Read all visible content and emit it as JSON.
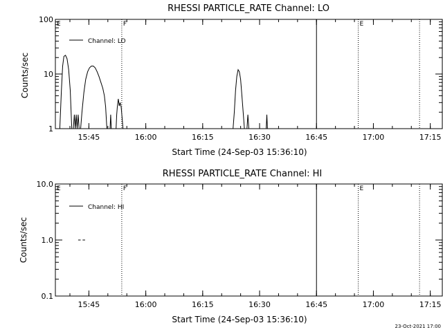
{
  "footer_date": "23-Oct-2021 17:00",
  "colors": {
    "background": "#ffffff",
    "foreground": "#000000"
  },
  "chart_data": [
    {
      "type": "line",
      "title": "RHESSI PARTICLE_RATE Channel: LO",
      "xlabel": "Start Time (24-Sep-03 15:36:10)",
      "ylabel": "Counts/sec",
      "yscale": "log",
      "xlim": [
        "15:36:10",
        "17:18:10"
      ],
      "ylim": [
        1,
        100
      ],
      "xticks": [
        "15:45",
        "16:00",
        "16:15",
        "16:30",
        "16:45",
        "17:00",
        "17:15"
      ],
      "yticks": [
        "1",
        "10",
        "100"
      ],
      "legend": {
        "position": "top-left",
        "entries": [
          "Channel: LO"
        ]
      },
      "series": [
        {
          "name": "Channel: LO",
          "segments": [
            [
              [
                "15:37:20",
                1
              ],
              [
                "15:37:45",
                5
              ],
              [
                "15:38:05",
                14
              ],
              [
                "15:38:25",
                21
              ],
              [
                "15:38:50",
                22
              ],
              [
                "15:39:15",
                19
              ],
              [
                "15:39:40",
                12
              ],
              [
                "15:40:05",
                5
              ],
              [
                "15:40:30",
                1
              ]
            ],
            [
              [
                "15:40:55",
                1
              ],
              [
                "15:41:10",
                1.8
              ],
              [
                "15:41:25",
                1
              ],
              [
                "15:41:40",
                1.8
              ],
              [
                "15:41:55",
                1
              ],
              [
                "15:42:10",
                1.8
              ],
              [
                "15:42:25",
                1
              ]
            ],
            [
              [
                "15:42:50",
                1
              ],
              [
                "15:43:10",
                2
              ],
              [
                "15:43:40",
                4.5
              ],
              [
                "15:44:10",
                8
              ],
              [
                "15:44:40",
                11
              ],
              [
                "15:45:10",
                13
              ],
              [
                "15:45:40",
                14
              ],
              [
                "15:46:10",
                14
              ],
              [
                "15:46:40",
                13
              ],
              [
                "15:47:10",
                11
              ],
              [
                "15:47:40",
                9
              ],
              [
                "15:48:10",
                7
              ],
              [
                "15:48:40",
                5.5
              ],
              [
                "15:49:05",
                4
              ],
              [
                "15:49:25",
                2.5
              ],
              [
                "15:49:45",
                1
              ]
            ],
            [
              [
                "15:50:35",
                1
              ],
              [
                "15:50:45",
                1.8
              ],
              [
                "15:50:55",
                1
              ]
            ],
            [
              [
                "15:52:10",
                1
              ],
              [
                "15:52:20",
                1.8
              ],
              [
                "15:52:30",
                2.5
              ],
              [
                "15:52:45",
                3.5
              ],
              [
                "15:53:00",
                2.6
              ],
              [
                "15:53:15",
                3
              ],
              [
                "15:53:30",
                2.5
              ],
              [
                "15:53:45",
                1.6
              ],
              [
                "15:54:00",
                1
              ]
            ],
            [
              [
                "16:23:00",
                1
              ],
              [
                "16:23:20",
                2
              ],
              [
                "16:23:40",
                5
              ],
              [
                "16:24:00",
                9
              ],
              [
                "16:24:20",
                12
              ],
              [
                "16:24:40",
                11
              ],
              [
                "16:25:00",
                8
              ],
              [
                "16:25:20",
                4
              ],
              [
                "16:25:40",
                2
              ],
              [
                "16:26:00",
                1
              ]
            ],
            [
              [
                "16:26:40",
                1
              ],
              [
                "16:26:55",
                1.8
              ],
              [
                "16:27:10",
                1
              ]
            ],
            [
              [
                "16:31:45",
                1
              ],
              [
                "16:31:55",
                1.8
              ],
              [
                "16:32:05",
                1
              ]
            ]
          ]
        }
      ],
      "annotations": [
        {
          "label": "E",
          "time": "15:36:10",
          "style": "none"
        },
        {
          "label": "F",
          "time": "15:53:40",
          "style": "dotted"
        },
        {
          "label": "",
          "time": "16:45:00",
          "style": "solid"
        },
        {
          "label": "E",
          "time": "16:56:00",
          "style": "dotted"
        },
        {
          "label": "",
          "time": "17:12:10",
          "style": "dotted"
        }
      ]
    },
    {
      "type": "line",
      "title": "RHESSI PARTICLE_RATE Channel: HI",
      "xlabel": "Start Time (24-Sep-03 15:36:10)",
      "ylabel": "Counts/sec",
      "yscale": "log",
      "xlim": [
        "15:36:10",
        "17:18:10"
      ],
      "ylim": [
        0.1,
        10
      ],
      "xticks": [
        "15:45",
        "16:00",
        "16:15",
        "16:30",
        "16:45",
        "17:00",
        "17:15"
      ],
      "yticks": [
        "0.1",
        "1.0",
        "10.0"
      ],
      "legend": {
        "position": "top-left",
        "entries": [
          "Channel: HI"
        ]
      },
      "series": [
        {
          "name": "Channel: HI",
          "segments": [
            [
              [
                "15:42:10",
                1
              ],
              [
                "15:42:50",
                1
              ]
            ],
            [
              [
                "15:43:20",
                1
              ],
              [
                "15:44:00",
                1
              ]
            ]
          ]
        }
      ],
      "annotations": [
        {
          "label": "E",
          "time": "15:36:10",
          "style": "none"
        },
        {
          "label": "F",
          "time": "15:53:40",
          "style": "dotted"
        },
        {
          "label": "",
          "time": "16:45:00",
          "style": "solid"
        },
        {
          "label": "E",
          "time": "16:56:00",
          "style": "dotted"
        },
        {
          "label": "",
          "time": "17:12:10",
          "style": "dotted"
        }
      ]
    }
  ]
}
